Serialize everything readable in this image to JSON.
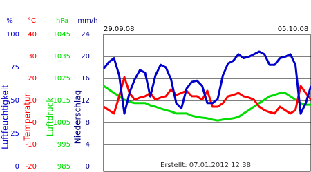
{
  "chart_data": {
    "type": "line",
    "x": [
      0,
      4,
      8,
      12,
      16,
      20,
      24,
      28,
      32,
      36,
      40,
      44,
      48,
      52,
      56,
      60,
      64,
      68,
      72,
      76,
      80,
      84,
      88,
      92,
      96,
      100,
      104,
      108,
      112,
      116,
      120,
      124,
      128,
      132,
      136,
      140,
      144,
      148,
      152,
      156,
      160
    ],
    "xlim": [
      0,
      160
    ],
    "xticks": [
      {
        "value": 0,
        "label": "29.09.08"
      },
      {
        "value": 144,
        "label": "05.10.08"
      }
    ],
    "note": "Erstellt: 07.01.2012 12:38",
    "grid": true,
    "axes": [
      {
        "title": "Luftfeuchtigkeit",
        "unit": "%",
        "color": "#0000cc",
        "lim": [
          0,
          100
        ],
        "ticks": [
          0,
          25,
          50,
          75,
          100
        ]
      },
      {
        "title": "Temperatur",
        "unit": "°C",
        "color": "#ff0000",
        "lim": [
          -20,
          40
        ],
        "ticks": [
          -20,
          -10,
          0,
          10,
          20,
          30,
          40
        ]
      },
      {
        "title": "Luftdruck",
        "unit": "hPa",
        "color": "#00dd00",
        "lim": [
          985,
          1045
        ],
        "ticks": [
          985,
          995,
          1005,
          1015,
          1025,
          1035,
          1045
        ]
      },
      {
        "title": "Niederschlag",
        "unit": "mm/h",
        "color": "#000080",
        "lim": [
          0,
          24
        ],
        "ticks": [
          0,
          4,
          8,
          12,
          16,
          20,
          24
        ]
      }
    ],
    "series": [
      {
        "name": "Luftfeuchtigkeit",
        "color": "#0000cc",
        "axis": 0,
        "values": [
          74,
          79,
          82,
          69,
          40,
          56,
          66,
          73,
          71,
          53,
          69,
          77,
          75,
          66,
          48,
          44,
          59,
          64,
          65,
          61,
          48,
          48,
          51,
          69,
          78,
          80,
          85,
          82,
          83,
          85,
          87,
          85,
          77,
          77,
          82,
          83,
          85,
          77,
          40,
          48,
          61
        ]
      },
      {
        "name": "Temperatur",
        "color": "#ff0000",
        "axis": 1,
        "values": [
          7.2,
          5.6,
          4.1,
          11.9,
          20.6,
          13.4,
          10.3,
          11.3,
          11.9,
          13.4,
          10.3,
          11.3,
          11.9,
          15,
          12.5,
          13.4,
          14.4,
          11.9,
          11.9,
          10.3,
          14.4,
          7.2,
          7.2,
          8.8,
          11.9,
          12.5,
          13.4,
          11.9,
          11.3,
          10.3,
          7.2,
          5.6,
          4.7,
          4.1,
          7.2,
          5.6,
          4.1,
          5.6,
          16.6,
          13.4,
          10.3
        ]
      },
      {
        "name": "Luftdruck",
        "color": "#00dd00",
        "axis": 2,
        "values": [
          1021.6,
          1020,
          1018.4,
          1016.9,
          1015.3,
          1014.4,
          1013.8,
          1013.8,
          1013.8,
          1012.8,
          1012.2,
          1011.3,
          1010.6,
          1010,
          1009.1,
          1009.1,
          1009.1,
          1008.1,
          1007.5,
          1007.2,
          1006.9,
          1006.3,
          1005.9,
          1006.3,
          1006.6,
          1006.9,
          1007.5,
          1009.1,
          1010.6,
          1012.2,
          1013.8,
          1015.3,
          1016.9,
          1017.5,
          1018.4,
          1018.4,
          1016.9,
          1015.3,
          1013.8,
          1013.1,
          1013.1
        ]
      }
    ]
  }
}
